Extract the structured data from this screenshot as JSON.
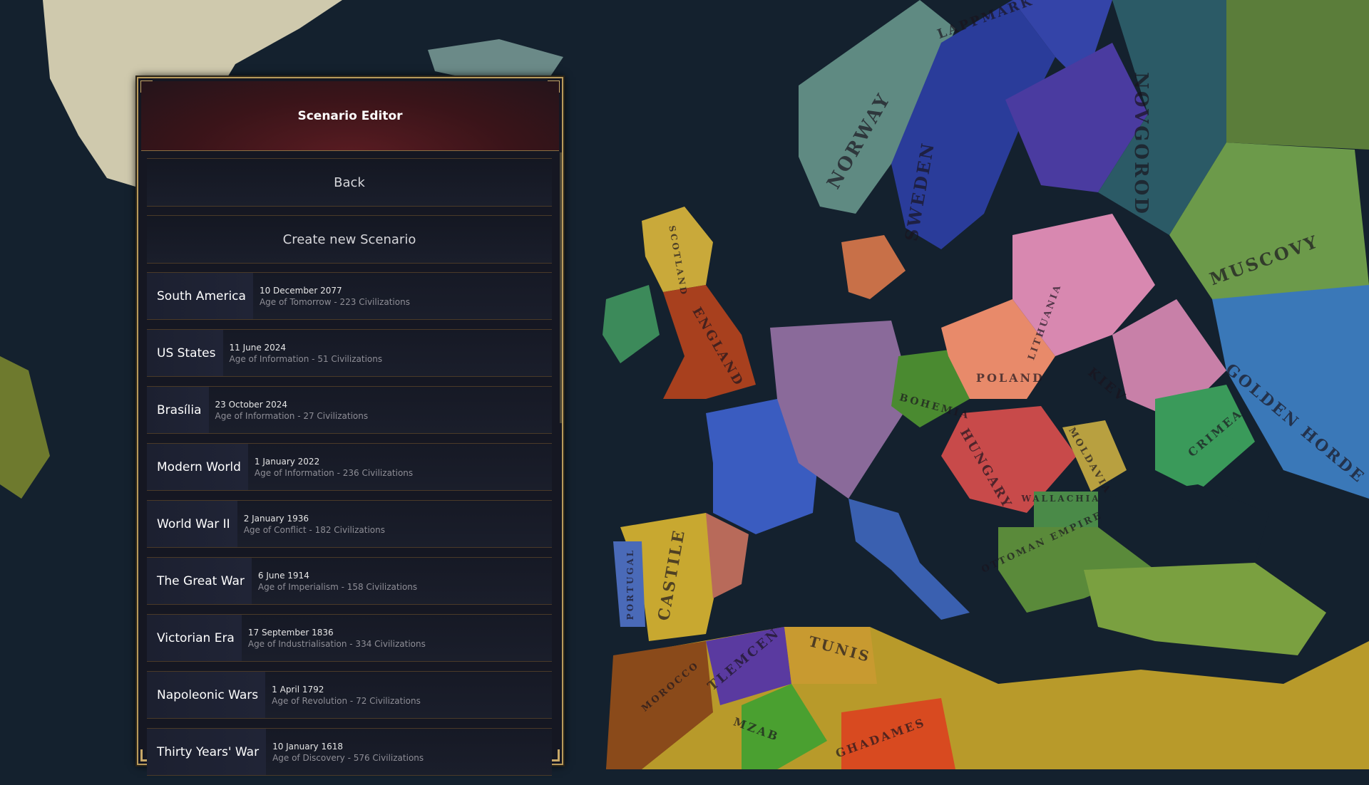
{
  "panel": {
    "title": "Scenario Editor",
    "back_label": "Back",
    "create_label": "Create new Scenario",
    "scenarios": [
      {
        "name": "South America",
        "date": "10 December 2077",
        "details": "Age of Tomorrow - 223 Civilizations"
      },
      {
        "name": "US States",
        "date": "11 June 2024",
        "details": "Age of Information - 51 Civilizations"
      },
      {
        "name": "Brasília",
        "date": "23 October 2024",
        "details": "Age of Information - 27 Civilizations"
      },
      {
        "name": "Modern World",
        "date": "1 January 2022",
        "details": "Age of Information - 236 Civilizations"
      },
      {
        "name": "World War II",
        "date": "2 January 1936",
        "details": "Age of Conflict - 182 Civilizations"
      },
      {
        "name": "The Great War",
        "date": "6 June 1914",
        "details": "Age of Imperialism - 158 Civilizations"
      },
      {
        "name": "Victorian Era",
        "date": "17 September 1836",
        "details": "Age of Industrialisation - 334 Civilizations"
      },
      {
        "name": "Napoleonic Wars",
        "date": "1 April 1792",
        "details": "Age of Revolution - 72 Civilizations"
      },
      {
        "name": "Thirty Years' War",
        "date": "10 January 1618",
        "details": "Age of Discovery - 576 Civilizations"
      }
    ]
  },
  "map": {
    "labels": [
      "NORWAY",
      "SWEDEN",
      "LAPPMARK",
      "NOVGOROD",
      "MUSCOVY",
      "ENGLAND",
      "SCOTLAND",
      "POLAND",
      "LITHUANIA",
      "KIEV",
      "BOHEMIA",
      "HUNGARY",
      "GOLDEN HORDE",
      "CRIMEA",
      "MOLDAVIA",
      "WALLACHIA",
      "OTTOMAN EMPIRE",
      "CASTILE",
      "PORTUGAL",
      "TUNIS",
      "TLEMCEN",
      "MOROCCO",
      "MZAB",
      "GHADAMES"
    ],
    "colors": {
      "sea": "#14212e",
      "panel_border": "#b89a5c",
      "header": "#4a1820"
    }
  }
}
